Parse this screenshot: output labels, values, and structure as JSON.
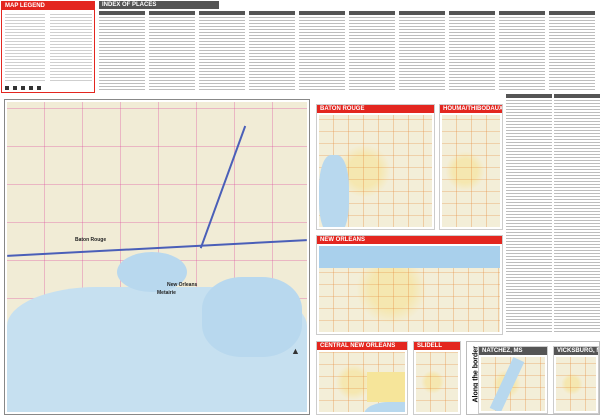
{
  "legend": {
    "title": "MAP LEGEND"
  },
  "index": {
    "title": "INDEX OF PLACES"
  },
  "main_map": {
    "labels": [
      "Baton Rouge",
      "New Orleans",
      "Metairie"
    ]
  },
  "insets": [
    {
      "title": "BATON ROUGE"
    },
    {
      "title": "HOUMA/THIBODAUX"
    },
    {
      "title": "NEW ORLEANS"
    },
    {
      "title": "CENTRAL NEW ORLEANS"
    },
    {
      "title": "SLIDELL"
    }
  ],
  "border_section": {
    "title": "Along the border",
    "maps": [
      {
        "title": "NATCHEZ, MS"
      },
      {
        "title": "VICKSBURG, MS"
      }
    ]
  },
  "colors": {
    "header_red": "#e3261f",
    "header_gray": "#555555",
    "water": "#b8d8ee",
    "land": "#f3eed8",
    "interstate": "#4a5fb8"
  }
}
